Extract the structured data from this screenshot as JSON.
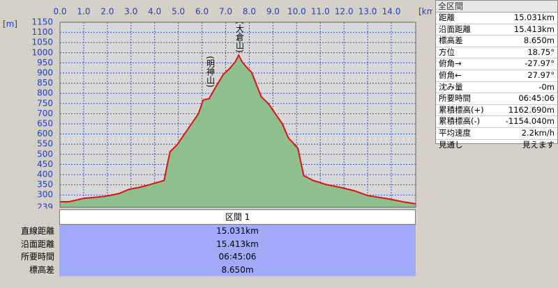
{
  "chart_data": {
    "type": "area",
    "x_unit": "[km]",
    "y_unit": "[m]",
    "x": [
      0,
      0.4,
      1.0,
      1.9,
      2.5,
      2.9,
      3.35,
      3.8,
      4.4,
      4.5,
      4.65,
      4.95,
      5.25,
      5.55,
      5.85,
      6.05,
      6.3,
      6.6,
      6.9,
      7.15,
      7.4,
      7.55,
      7.7,
      7.9,
      8.1,
      8.5,
      8.8,
      9.1,
      9.4,
      9.65,
      10.05,
      10.3,
      10.7,
      11.25,
      11.85,
      12.45,
      13.0,
      13.9,
      14.5,
      15.031
    ],
    "values": [
      266,
      267,
      283,
      293,
      307,
      327,
      337,
      351,
      371,
      429,
      513,
      547,
      598,
      649,
      700,
      767,
      774,
      835,
      893,
      920,
      954,
      988,
      954,
      927,
      903,
      784,
      750,
      700,
      649,
      581,
      530,
      395,
      371,
      351,
      337,
      320,
      297,
      280,
      266,
      256
    ],
    "color": "#e01010",
    "fill": "#8fbf8f",
    "xlim": [
      0,
      15.031
    ],
    "ylim": [
      239,
      1150
    ],
    "xticks": [
      {
        "value": 0,
        "label": "0.0"
      },
      {
        "value": 1,
        "label": "1.0"
      },
      {
        "value": 2,
        "label": "2.0"
      },
      {
        "value": 3,
        "label": "3.0"
      },
      {
        "value": 4,
        "label": "4.0"
      },
      {
        "value": 5,
        "label": "5.0"
      },
      {
        "value": 6,
        "label": "6.0"
      },
      {
        "value": 7,
        "label": "7.0"
      },
      {
        "value": 8,
        "label": "8.0"
      },
      {
        "value": 9,
        "label": "9.0"
      },
      {
        "value": 10,
        "label": "10.0"
      },
      {
        "value": 11,
        "label": "11.0"
      },
      {
        "value": 12,
        "label": "12.0"
      },
      {
        "value": 13,
        "label": "13.0"
      },
      {
        "value": 14,
        "label": "14.0"
      }
    ],
    "yticks": [
      239,
      300,
      350,
      400,
      450,
      500,
      550,
      600,
      650,
      700,
      750,
      800,
      850,
      900,
      950,
      1000,
      1050,
      1100,
      1150
    ],
    "grid": true,
    "annotations": [
      "(明神山)",
      "(大倉山)"
    ]
  },
  "panel": {
    "title": "全区間",
    "rows": [
      [
        "距離",
        "15.031km"
      ],
      [
        "沿面距離",
        "15.413km"
      ],
      [
        "標高差",
        "8.650m"
      ],
      [
        "方位",
        "18.75°"
      ],
      [
        "俯角→",
        "-27.97°"
      ],
      [
        "俯角←",
        "27.97°"
      ],
      [
        "沈み量",
        "-0m"
      ],
      [
        "所要時間",
        "06:45:06"
      ],
      [
        "累積標高(+)",
        "1162.690m"
      ],
      [
        "累積標高(-)",
        "-1154.040m"
      ],
      [
        "平均速度",
        "2.2km/h"
      ],
      [
        "見通し",
        "見えます"
      ]
    ]
  },
  "summary": {
    "title": "区間 1",
    "rows": [
      [
        "直線距離",
        "15.031km"
      ],
      [
        "沿面距離",
        "15.413km"
      ],
      [
        "所要時間",
        "06:45:06"
      ],
      [
        "標高差",
        "8.650m"
      ]
    ]
  }
}
